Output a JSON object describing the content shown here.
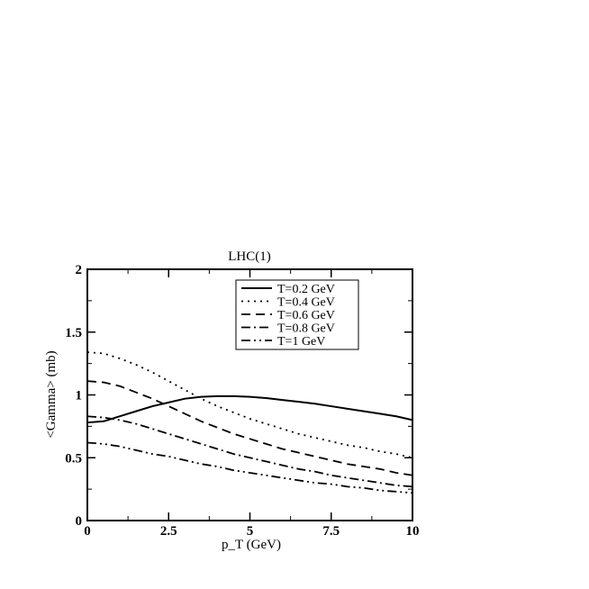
{
  "chart_data": {
    "type": "line",
    "title": "LHC(1)",
    "xlabel": "p_T (GeV)",
    "ylabel": "<Gamma> (mb)",
    "xlim": [
      0,
      10
    ],
    "ylim": [
      0,
      2
    ],
    "xticks": [
      0,
      2.5,
      5,
      7.5,
      10
    ],
    "xtick_labels": [
      "0",
      "2.5",
      "5",
      "7.5",
      "10"
    ],
    "yticks": [
      0,
      0.5,
      1,
      1.5,
      2
    ],
    "ytick_labels": [
      "0",
      "0.5",
      "1",
      "1.5",
      "2"
    ],
    "legend_position": "top-right",
    "grid": false,
    "series": [
      {
        "name": "T=0.2 GeV",
        "style": "solid",
        "x": [
          0,
          0.5,
          1,
          1.5,
          2,
          2.5,
          3,
          3.5,
          4,
          4.5,
          5,
          5.5,
          6,
          6.5,
          7,
          7.5,
          8,
          8.5,
          9,
          9.5,
          10
        ],
        "y": [
          0.78,
          0.79,
          0.83,
          0.87,
          0.91,
          0.94,
          0.97,
          0.985,
          0.99,
          0.99,
          0.985,
          0.975,
          0.96,
          0.945,
          0.93,
          0.91,
          0.89,
          0.87,
          0.85,
          0.83,
          0.8
        ]
      },
      {
        "name": "T=0.4 GeV",
        "style": "dotted",
        "x": [
          0,
          0.5,
          1,
          1.5,
          2,
          2.5,
          3,
          3.5,
          4,
          4.5,
          5,
          5.5,
          6,
          6.5,
          7,
          7.5,
          8,
          8.5,
          9,
          9.5,
          10
        ],
        "y": [
          1.34,
          1.33,
          1.29,
          1.24,
          1.18,
          1.11,
          1.04,
          0.97,
          0.91,
          0.86,
          0.81,
          0.77,
          0.73,
          0.69,
          0.66,
          0.63,
          0.6,
          0.58,
          0.55,
          0.53,
          0.5
        ]
      },
      {
        "name": "T=0.6 GeV",
        "style": "dashed",
        "x": [
          0,
          0.5,
          1,
          1.5,
          2,
          2.5,
          3,
          3.5,
          4,
          4.5,
          5,
          5.5,
          6,
          6.5,
          7,
          7.5,
          8,
          8.5,
          9,
          9.5,
          10
        ],
        "y": [
          1.11,
          1.1,
          1.07,
          1.02,
          0.97,
          0.91,
          0.85,
          0.79,
          0.74,
          0.69,
          0.65,
          0.61,
          0.57,
          0.54,
          0.51,
          0.48,
          0.45,
          0.43,
          0.41,
          0.38,
          0.36
        ]
      },
      {
        "name": "T=0.8 GeV",
        "style": "dashdot",
        "x": [
          0,
          0.5,
          1,
          1.5,
          2,
          2.5,
          3,
          3.5,
          4,
          4.5,
          5,
          5.5,
          6,
          6.5,
          7,
          7.5,
          8,
          8.5,
          9,
          9.5,
          10
        ],
        "y": [
          0.83,
          0.82,
          0.8,
          0.77,
          0.73,
          0.69,
          0.65,
          0.61,
          0.57,
          0.53,
          0.5,
          0.47,
          0.44,
          0.41,
          0.39,
          0.36,
          0.34,
          0.32,
          0.3,
          0.28,
          0.27
        ]
      },
      {
        "name": "T=1 GeV",
        "style": "dashdotdot",
        "x": [
          0,
          0.5,
          1,
          1.5,
          2,
          2.5,
          3,
          3.5,
          4,
          4.5,
          5,
          5.5,
          6,
          6.5,
          7,
          7.5,
          8,
          8.5,
          9,
          9.5,
          10
        ],
        "y": [
          0.62,
          0.61,
          0.59,
          0.56,
          0.53,
          0.51,
          0.48,
          0.45,
          0.43,
          0.4,
          0.38,
          0.36,
          0.34,
          0.32,
          0.3,
          0.29,
          0.27,
          0.26,
          0.24,
          0.23,
          0.22
        ]
      }
    ]
  }
}
